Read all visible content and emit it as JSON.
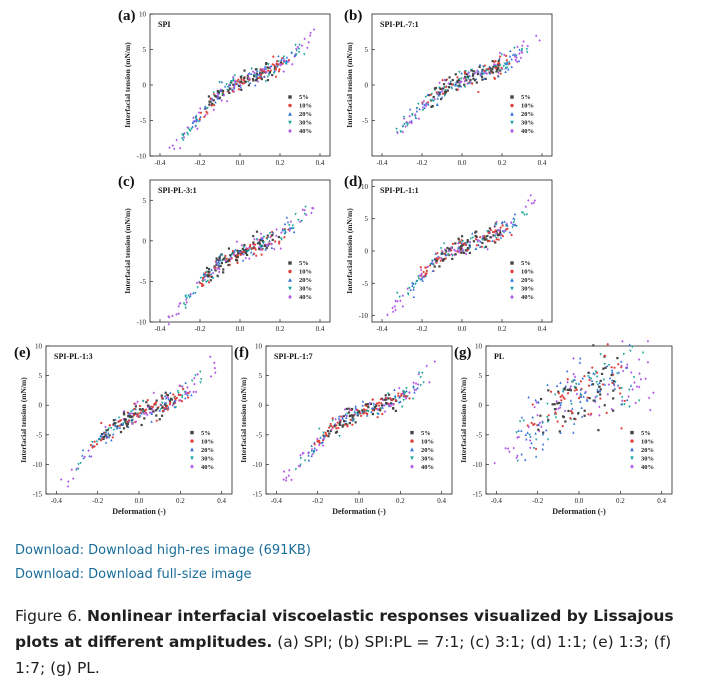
{
  "legend_labels": [
    "5%",
    "10%",
    "20%",
    "30%",
    "40%"
  ],
  "series_colors": [
    "#444444",
    "#e0413a",
    "#2f6fd8",
    "#1aa39a",
    "#b45ee6"
  ],
  "chart_data": [
    {
      "type": "scatter",
      "panel": "(a)",
      "title": "SPI",
      "ylabel": "Interfacial tension (mN/m)",
      "xlabel": "",
      "ylim": [
        -10,
        10
      ],
      "xlim": [
        -0.45,
        0.45
      ],
      "yticks": [
        "-10",
        "-5",
        "0",
        "5",
        "10"
      ],
      "xticks": [
        "-0.4",
        "-0.2",
        "0.0",
        "0.2",
        "0.4"
      ],
      "curve": {
        "x_start": -0.34,
        "x_end": 0.38,
        "y_start": -8.6,
        "y_end": 8.5,
        "shape": "s",
        "spread": 0.6
      }
    },
    {
      "type": "scatter",
      "panel": "(b)",
      "title": "SPI-PL-7:1",
      "ylabel": "Interfacial tension (mN/m)",
      "xlabel": "",
      "ylim": [
        -10,
        10
      ],
      "xlim": [
        -0.45,
        0.45
      ],
      "yticks": [
        "-5",
        "0",
        "5"
      ],
      "xticks": [
        "-0.4",
        "-0.2",
        "0.0",
        "0.2",
        "0.4"
      ],
      "curve": {
        "x_start": -0.36,
        "x_end": 0.38,
        "y_start": -7.5,
        "y_end": 8.0,
        "shape": "s",
        "spread": 0.7
      }
    },
    {
      "type": "scatter",
      "panel": "(c)",
      "title": "SPI-PL-3:1",
      "ylabel": "Interfacial tension (mN/m)",
      "xlabel": "",
      "ylim": [
        -10,
        7.5
      ],
      "xlim": [
        -0.45,
        0.45
      ],
      "yticks": [
        "-10",
        "-5",
        "0",
        "5"
      ],
      "xticks": [
        "-0.4",
        "-0.2",
        "0.0",
        "0.2",
        "0.4"
      ],
      "curve": {
        "x_start": -0.36,
        "x_end": 0.38,
        "y_start": -9.5,
        "y_end": 5.5,
        "shape": "s",
        "spread": 0.6
      }
    },
    {
      "type": "scatter",
      "panel": "(d)",
      "title": "SPI-PL-1:1",
      "ylabel": "Interfacial tension (mN/m)",
      "xlabel": "",
      "ylim": [
        -11,
        11
      ],
      "xlim": [
        -0.45,
        0.45
      ],
      "yticks": [
        "-10",
        "-5",
        "0",
        "5",
        "10"
      ],
      "xticks": [
        "-0.4",
        "-0.2",
        "0.0",
        "0.2",
        "0.4"
      ],
      "curve": {
        "x_start": -0.36,
        "x_end": 0.38,
        "y_start": -8.8,
        "y_end": 9.0,
        "shape": "s",
        "spread": 0.7
      }
    },
    {
      "type": "scatter",
      "panel": "(e)",
      "title": "SPI-PL-1:3",
      "ylabel": "Interfacial tension (mN/m)",
      "xlabel": "Deformation (-)",
      "ylim": [
        -15,
        10
      ],
      "xlim": [
        -0.45,
        0.45
      ],
      "yticks": [
        "-15",
        "-10",
        "-5",
        "0",
        "5",
        "10"
      ],
      "xticks": [
        "-0.4",
        "-0.2",
        "0.0",
        "0.2",
        "0.4"
      ],
      "curve": {
        "x_start": -0.37,
        "x_end": 0.37,
        "y_start": -12.5,
        "y_end": 8.0,
        "shape": "s",
        "spread": 0.9
      }
    },
    {
      "type": "scatter",
      "panel": "(f)",
      "title": "SPI-PL-1:7",
      "ylabel": "Interfacial tension (mN/m)",
      "xlabel": "Deformation (-)",
      "ylim": [
        -15,
        10
      ],
      "xlim": [
        -0.45,
        0.45
      ],
      "yticks": [
        "-15",
        "-10",
        "-5",
        "0",
        "5",
        "10"
      ],
      "xticks": [
        "-0.4",
        "-0.2",
        "0.0",
        "0.2",
        "0.4"
      ],
      "curve": {
        "x_start": -0.36,
        "x_end": 0.38,
        "y_start": -12.0,
        "y_end": 8.0,
        "shape": "s",
        "spread": 0.8
      }
    },
    {
      "type": "scatter",
      "panel": "(g)",
      "title": "PL",
      "ylabel": "Interfacial tension (mN/m)",
      "xlabel": "Deformation (-)",
      "ylim": [
        -15,
        10
      ],
      "xlim": [
        -0.45,
        0.45
      ],
      "yticks": [
        "-15",
        "-10",
        "-5",
        "0",
        "5",
        "10"
      ],
      "xticks": [
        "-0.4",
        "-0.2",
        "0.0",
        "0.2",
        "0.4"
      ],
      "curve": {
        "x_start": -0.4,
        "x_end": 0.37,
        "y_start": -11.0,
        "y_end": 5.0,
        "shape": "concave",
        "spread": 2.8
      }
    }
  ],
  "links": {
    "high_res": "Download: Download high-res image (691KB)",
    "full_size": "Download: Download full-size image"
  },
  "caption": {
    "label": "Figure 6. ",
    "bold": "Nonlinear interfacial viscoelastic responses visualized by Lissajous plots at different amplitudes.",
    "rest": " (a) SPI; (b) SPI:PL = 7:1; (c) 3:1; (d) 1:1; (e) 1:3; (f) 1:7; (g) PL."
  }
}
